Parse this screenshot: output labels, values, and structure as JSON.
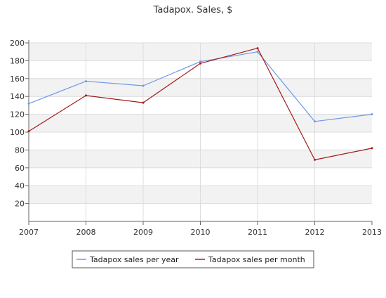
{
  "chart_data": {
    "type": "line",
    "title": "Tadapox. Sales, $",
    "xlabel": "",
    "ylabel": "",
    "x": [
      "2007",
      "2008",
      "2009",
      "2010",
      "2011",
      "2012",
      "2013"
    ],
    "ylim": [
      0,
      200
    ],
    "yticks": [
      20,
      40,
      60,
      80,
      100,
      120,
      140,
      160,
      180,
      200
    ],
    "grid": true,
    "legend_position": "bottom",
    "series": [
      {
        "name": "Tadapox sales per year",
        "color": "#6f97e6",
        "values": [
          132,
          157,
          152,
          179,
          190,
          112,
          120
        ]
      },
      {
        "name": "Tadapox sales per month",
        "color": "#a11b1b",
        "values": [
          101,
          141,
          133,
          177,
          194,
          69,
          82
        ]
      }
    ]
  }
}
